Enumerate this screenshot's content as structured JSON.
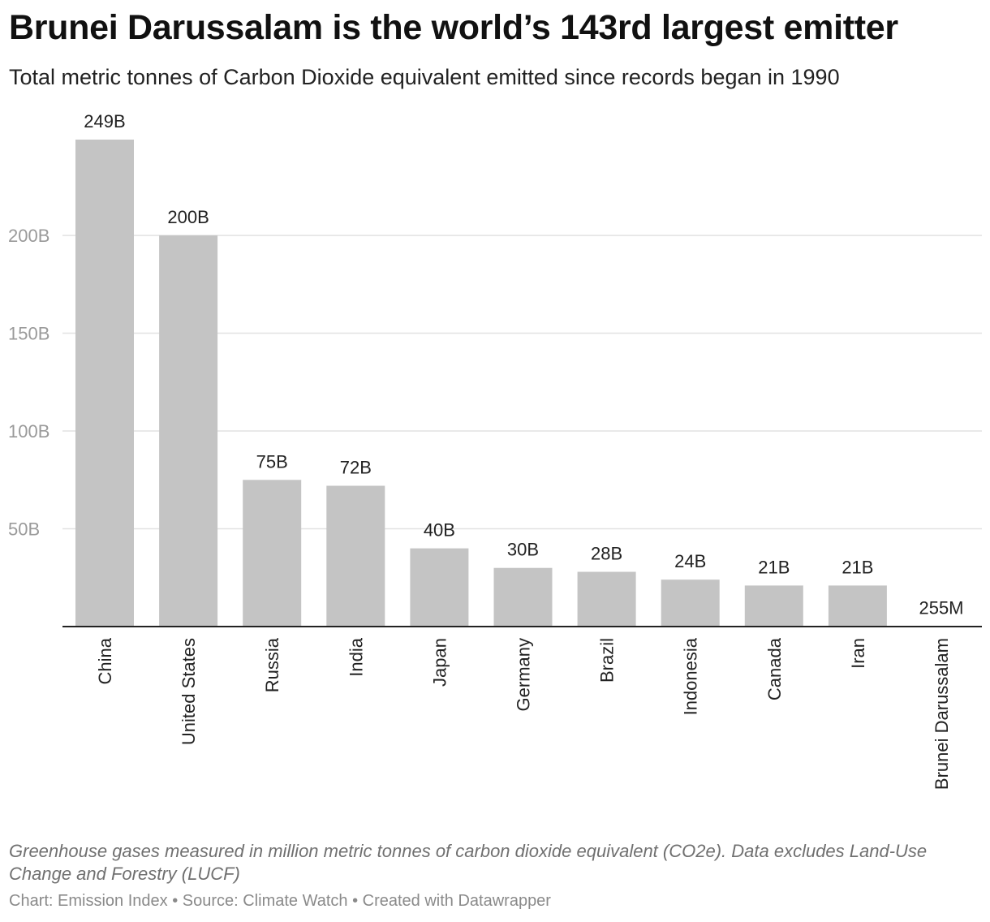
{
  "header": {
    "title": "Brunei Darussalam is the world’s 143rd largest emitter",
    "subtitle": "Total metric tonnes of Carbon Dioxide equivalent emitted since records began in 1990"
  },
  "footer": {
    "notes": "Greenhouse gases measured in million metric tonnes of carbon dioxide equivalent (CO2e). Data excludes Land-Use Change and Forestry (LUCF)",
    "credits": "Chart: Emission Index • Source: Climate Watch • Created with Datawrapper"
  },
  "colors": {
    "bar": "#c4c4c4",
    "gridline": "#e2e2e2",
    "axis": "#222222",
    "tick_text": "#9a9a9a"
  },
  "chart_data": {
    "type": "bar",
    "categories": [
      "China",
      "United States",
      "Russia",
      "India",
      "Japan",
      "Germany",
      "Brazil",
      "Indonesia",
      "Canada",
      "Iran",
      "Brunei Darussalam"
    ],
    "values": [
      249,
      200,
      75,
      72,
      40,
      30,
      28,
      24,
      21,
      21,
      0.255
    ],
    "value_units": "billion tonnes CO2e",
    "data_labels": [
      "249B",
      "200B",
      "75B",
      "72B",
      "40B",
      "30B",
      "28B",
      "24B",
      "21B",
      "21B",
      "255M"
    ],
    "yticks": [
      50,
      100,
      150,
      200
    ],
    "ytick_labels": [
      "50B",
      "100B",
      "150B",
      "200B"
    ],
    "ylim": [
      0,
      249
    ],
    "grid": true,
    "legend": "none"
  }
}
